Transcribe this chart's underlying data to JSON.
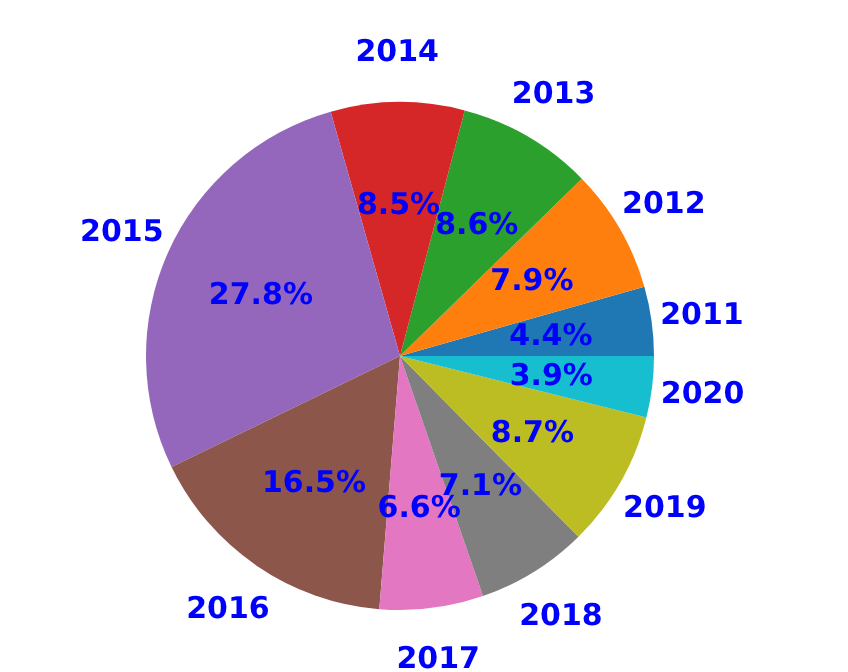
{
  "chart_data": {
    "type": "pie",
    "categories": [
      "2011",
      "2012",
      "2013",
      "2014",
      "2015",
      "2016",
      "2017",
      "2018",
      "2019",
      "2020"
    ],
    "values": [
      4.4,
      7.9,
      8.6,
      8.5,
      27.8,
      16.5,
      6.6,
      7.1,
      8.7,
      3.9
    ],
    "value_labels": [
      "4.4%",
      "7.9%",
      "8.6%",
      "8.5%",
      "27.8%",
      "16.5%",
      "6.6%",
      "7.1%",
      "8.7%",
      "3.9%"
    ],
    "colors": [
      "#1f77b4",
      "#ff7f0e",
      "#2ca02c",
      "#d62728",
      "#9467bd",
      "#8c564b",
      "#e377c2",
      "#7f7f7f",
      "#bcbd22",
      "#17becf"
    ],
    "legend": false
  }
}
